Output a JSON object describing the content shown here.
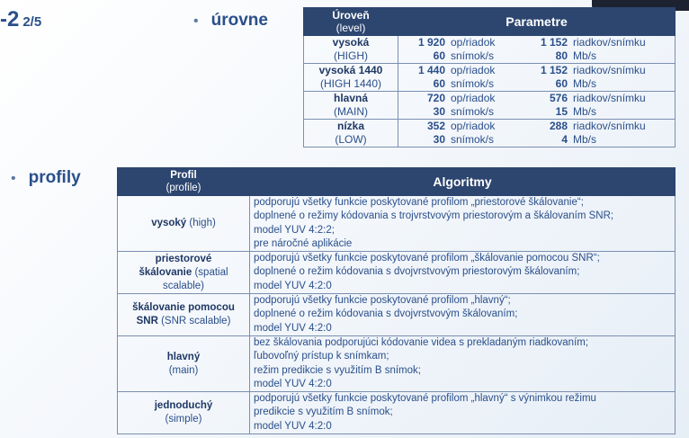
{
  "heading": {
    "main": "-2",
    "sub": "2/5"
  },
  "bullets": {
    "levels": "úrovne",
    "profiles": "profily"
  },
  "levels_table": {
    "header": {
      "col1_line1": "Úroveň",
      "col1_line2": "(level)",
      "col2": "Parametre"
    },
    "rows": [
      {
        "name": "vysoká",
        "alt": "(HIGH)",
        "samples": "1 920",
        "samples_unit": "op/riadok",
        "lines": "1 152",
        "lines_unit": "riadkov/snímku",
        "fps": "60",
        "fps_unit": "snímok/s",
        "rate": "80",
        "rate_unit": "Mb/s"
      },
      {
        "name": "vysoká 1440",
        "alt": "(HIGH 1440)",
        "samples": "1 440",
        "samples_unit": "op/riadok",
        "lines": "1 152",
        "lines_unit": "riadkov/snímku",
        "fps": "60",
        "fps_unit": "snímok/s",
        "rate": "60",
        "rate_unit": "Mb/s"
      },
      {
        "name": "hlavná",
        "alt": "(MAIN)",
        "samples": "720",
        "samples_unit": "op/riadok",
        "lines": "576",
        "lines_unit": "riadkov/snímku",
        "fps": "30",
        "fps_unit": "snímok/s",
        "rate": "15",
        "rate_unit": "Mb/s"
      },
      {
        "name": "nízka",
        "alt": "(LOW)",
        "samples": "352",
        "samples_unit": "op/riadok",
        "lines": "288",
        "lines_unit": "riadkov/snímku",
        "fps": "30",
        "fps_unit": "snímok/s",
        "rate": "4",
        "rate_unit": "Mb/s"
      }
    ]
  },
  "profiles_table": {
    "header": {
      "col1_line1": "Profil",
      "col1_line2": "(profile)",
      "col2": "Algoritmy"
    },
    "rows": [
      {
        "name": "vysoký",
        "name_line2": "",
        "alt": "(high)",
        "lines": [
          "podporujú všetky funkcie poskytované profilom „priestorové škálovanie“;",
          "doplnené o režimy kódovania s trojvrstvovým priestorovým a škálovaním SNR;",
          "model YUV 4:2:2;",
          "pre náročné aplikácie"
        ]
      },
      {
        "name": "priestorové",
        "name_line2": "škálovanie",
        "alt": "(spatial scalable)",
        "lines": [
          "podporujú všetky funkcie poskytované profilom „škálovanie pomocou SNR“;",
          "doplnené o režim kódovania s dvojvrstvovým priestorovým škálovaním;",
          "model YUV 4:2:0"
        ]
      },
      {
        "name": "škálovanie pomocou",
        "name_line2": "SNR",
        "alt": "(SNR scalable)",
        "lines": [
          "podporujú všetky funkcie poskytované profilom „hlavný“;",
          "doplnené o režim kódovania s dvojvrstvovým škálovaním;",
          "model YUV 4:2:0"
        ]
      },
      {
        "name": "hlavný",
        "name_line2": "",
        "alt": "(main)",
        "lines": [
          "bez škálovania podporujúci kódovanie videa s prekladaným riadkovaním;",
          "ľubovoľný prístup k snímkam;",
          "režim predikcie s využitím B snímok;",
          "model YUV 4:2:0"
        ]
      },
      {
        "name": "jednoduchý",
        "name_line2": "",
        "alt": "(simple)",
        "lines": [
          "podporujú všetky funkcie poskytované profilom „hlavný“ s výnimkou režimu",
          "predikcie s využitím B snímok;",
          "model YUV 4:2:0"
        ]
      }
    ]
  }
}
